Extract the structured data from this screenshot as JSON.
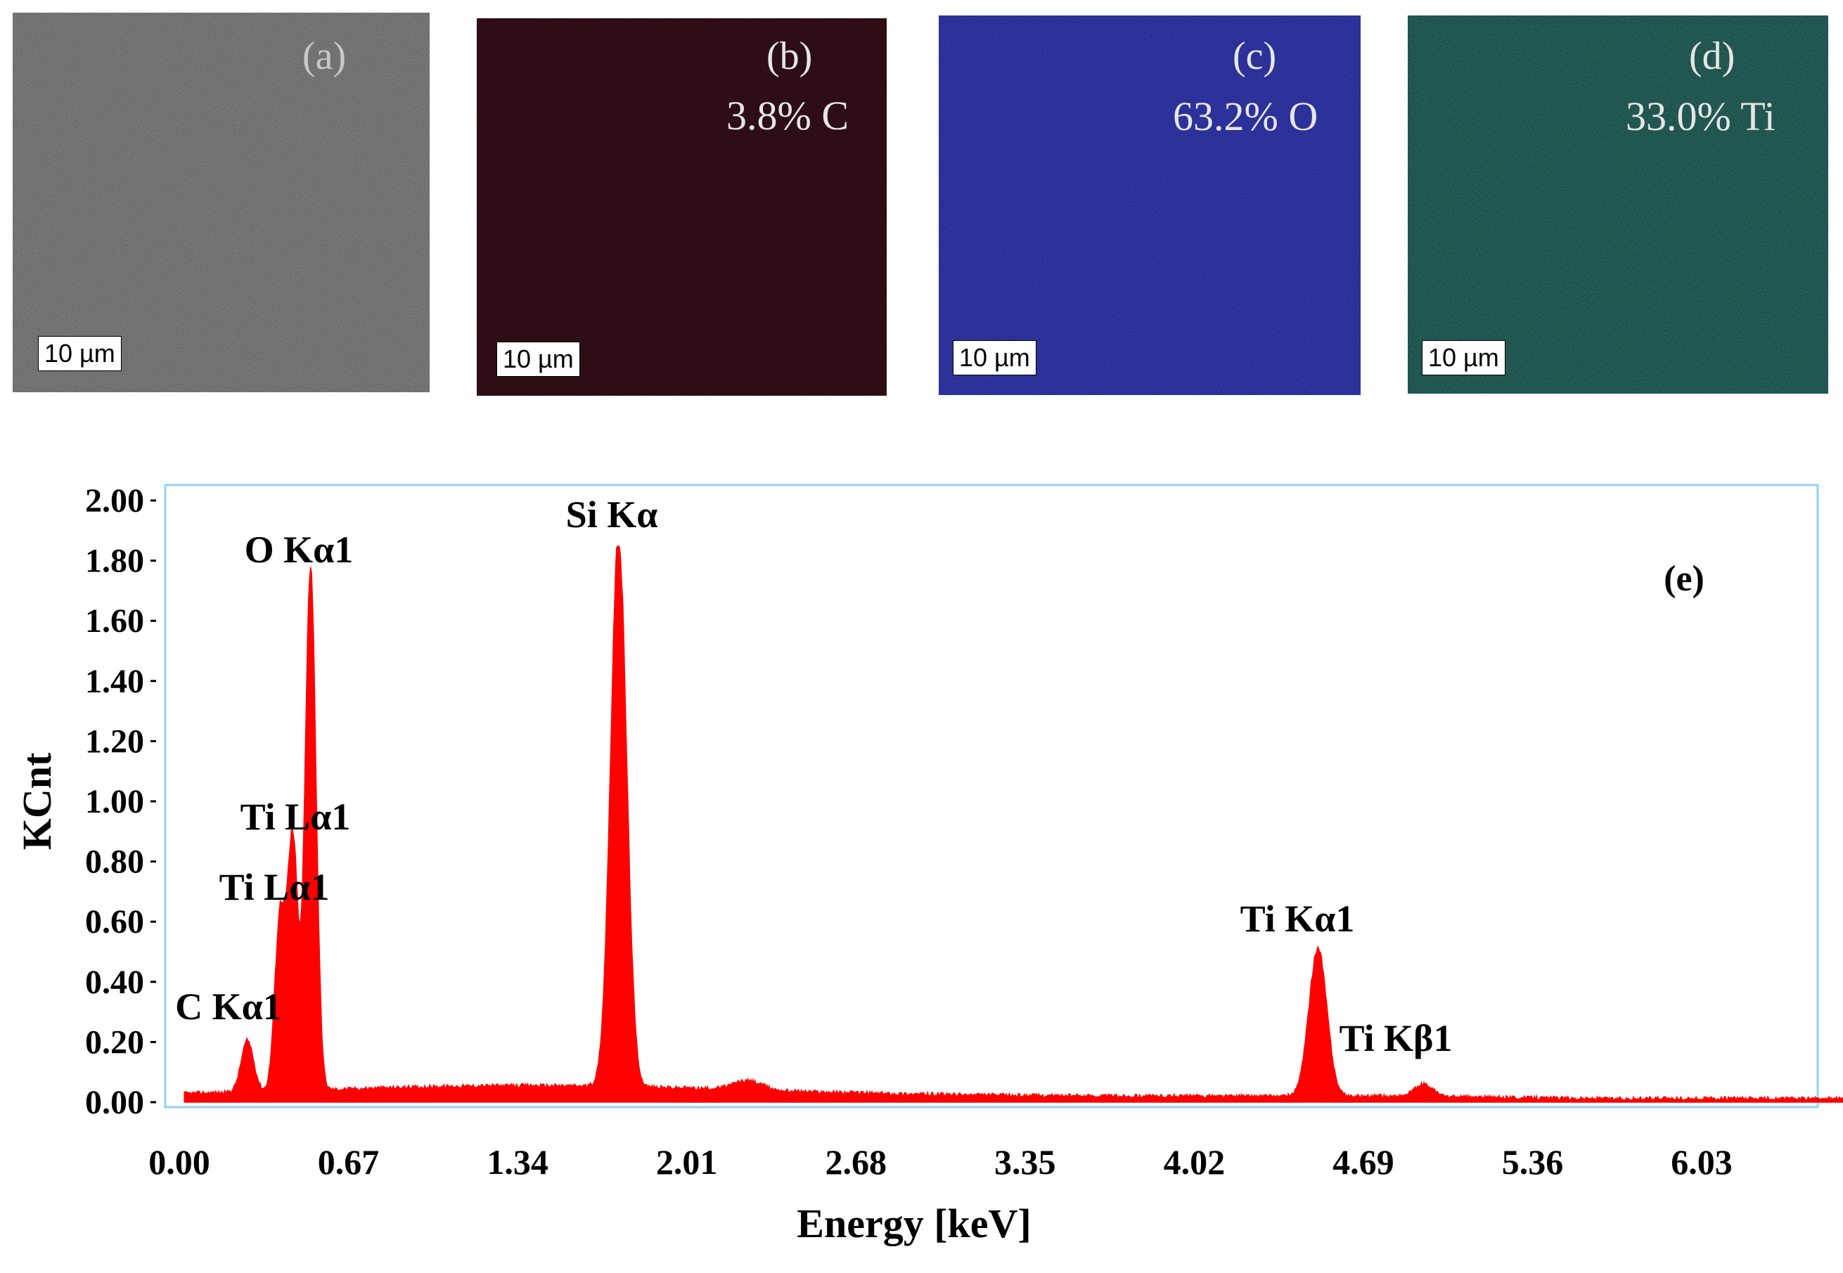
{
  "panels": [
    {
      "label": "(a)",
      "percent": "",
      "scale_bar": "10 µm",
      "color": "#5a5a5a"
    },
    {
      "label": "(b)",
      "percent": "3.8% C",
      "scale_bar": "10 µm",
      "color": "#1a0608"
    },
    {
      "label": "(c)",
      "percent": "63.2% O",
      "scale_bar": "10 µm",
      "color": "#1a1c8c"
    },
    {
      "label": "(d)",
      "percent": "33.0% Ti",
      "scale_bar": "10 µm",
      "color": "#0d3a33"
    }
  ],
  "chart_data": {
    "type": "area",
    "panel_label": "(e)",
    "xlabel": "Energy [keV]",
    "ylabel": "KCnt",
    "xlim": [
      0.0,
      6.95
    ],
    "ylim": [
      0.0,
      2.0
    ],
    "x_ticks": [
      "0.00",
      "0.67",
      "1.34",
      "2.01",
      "2.68",
      "3.35",
      "4.02",
      "4.69",
      "5.36",
      "6.03"
    ],
    "y_ticks": [
      "0.00",
      "0.20",
      "0.40",
      "0.60",
      "0.80",
      "1.00",
      "1.20",
      "1.40",
      "1.60",
      "1.80",
      "2.00"
    ],
    "series_color": "#ff0000",
    "frame_color": "#8fd3f4",
    "peaks": [
      {
        "label": "C Kα1",
        "energy": 0.27,
        "height": 0.2
      },
      {
        "label": "Ti Lα1",
        "energy": 0.4,
        "height": 0.62
      },
      {
        "label": "Ti Lα1",
        "energy": 0.45,
        "height": 0.85
      },
      {
        "label": "O Kα1",
        "energy": 0.52,
        "height": 1.78
      },
      {
        "label": "Si Kα",
        "energy": 1.74,
        "height": 1.85
      },
      {
        "label": "Ti Kα1",
        "energy": 4.51,
        "height": 0.52
      },
      {
        "label": "Ti Kβ1",
        "energy": 4.93,
        "height": 0.07
      }
    ],
    "annotations": [
      "C Kα1",
      "Ti Lα1",
      "Ti Lα1",
      "O Kα1",
      "Si Kα",
      "Ti Kα1",
      "Ti Kβ1"
    ]
  }
}
